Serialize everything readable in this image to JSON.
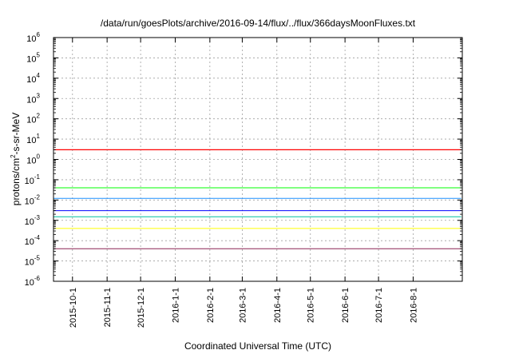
{
  "chart_data": {
    "type": "line",
    "title": "/data/run/goesPlots/archive/2016-09-14/flux/../flux/366daysMoonFluxes.txt",
    "xlabel": "Coordinated Universal Time (UTC)",
    "ylabel_parts": [
      "protons/cm",
      "2",
      "-s-sr-MeV"
    ],
    "y_scale": "log",
    "ylim": [
      1e-06,
      1000000.0
    ],
    "xlim": [
      "2015-09-14",
      "2016-09-14"
    ],
    "grid": true,
    "x_ticks": [
      {
        "date": "2015-10-01",
        "label": "2015-10-1"
      },
      {
        "date": "2015-11-01",
        "label": "2015-11-1"
      },
      {
        "date": "2015-12-01",
        "label": "2015-12-1"
      },
      {
        "date": "2016-01-01",
        "label": "2016-1-1"
      },
      {
        "date": "2016-02-01",
        "label": "2016-2-1"
      },
      {
        "date": "2016-03-01",
        "label": "2016-3-1"
      },
      {
        "date": "2016-04-01",
        "label": "2016-4-1"
      },
      {
        "date": "2016-05-01",
        "label": "2016-5-1"
      },
      {
        "date": "2016-06-01",
        "label": "2016-6-1"
      },
      {
        "date": "2016-07-01",
        "label": "2016-7-1"
      },
      {
        "date": "2016-08-01",
        "label": "2016-8-1"
      }
    ],
    "y_ticks": [
      {
        "exp": -6,
        "base": "10",
        "sup": "-6"
      },
      {
        "exp": -5,
        "base": "10",
        "sup": "-5"
      },
      {
        "exp": -4,
        "base": "10",
        "sup": "-4"
      },
      {
        "exp": -3,
        "base": "10",
        "sup": "-3"
      },
      {
        "exp": -2,
        "base": "10",
        "sup": "-2"
      },
      {
        "exp": -1,
        "base": "10",
        "sup": "-1"
      },
      {
        "exp": 0,
        "base": "10",
        "sup": "0"
      },
      {
        "exp": 1,
        "base": "10",
        "sup": "1"
      },
      {
        "exp": 2,
        "base": "10",
        "sup": "2"
      },
      {
        "exp": 3,
        "base": "10",
        "sup": "3"
      },
      {
        "exp": 4,
        "base": "10",
        "sup": "4"
      },
      {
        "exp": 5,
        "base": "10",
        "sup": "5"
      },
      {
        "exp": 6,
        "base": "10",
        "sup": "6"
      }
    ],
    "series": [
      {
        "color": "#8b2252",
        "width": 1.0,
        "x": [
          "2015-09-14",
          "2015-10-15",
          "2015-11-15",
          "2015-12-15",
          "2016-01-15",
          "2016-02-15",
          "2016-03-15",
          "2016-04-15",
          "2016-05-15",
          "2016-06-15",
          "2016-07-15",
          "2016-08-15",
          "2016-09-13"
        ],
        "y": [
          4e-05,
          4e-05,
          4e-05,
          4e-05,
          4e-05,
          4e-05,
          4e-05,
          4e-05,
          4e-05,
          4e-05,
          4e-05,
          4e-05,
          4e-05
        ]
      },
      {
        "color": "#ffff00",
        "width": 1.0,
        "x": [
          "2015-09-14",
          "2015-10-15",
          "2015-11-15",
          "2015-12-15",
          "2016-01-15",
          "2016-02-15",
          "2016-03-15",
          "2016-04-15",
          "2016-05-15",
          "2016-06-15",
          "2016-07-15",
          "2016-08-15",
          "2016-09-13"
        ],
        "y": [
          0.0004,
          0.0004,
          0.0004,
          0.0004,
          0.0004,
          0.0004,
          0.0004,
          0.0004,
          0.0004,
          0.0004,
          0.0004,
          0.0004,
          0.0004
        ]
      },
      {
        "color": "#00c0a0",
        "width": 1.0,
        "x": [
          "2015-09-14",
          "2015-10-15",
          "2015-11-15",
          "2015-12-15",
          "2016-01-15",
          "2016-02-15",
          "2016-03-15",
          "2016-04-15",
          "2016-05-15",
          "2016-06-15",
          "2016-07-15",
          "2016-08-15",
          "2016-09-13"
        ],
        "y": [
          0.0015,
          0.0015,
          0.0015,
          0.0015,
          0.0015,
          0.0015,
          0.0015,
          0.0015,
          0.0015,
          0.0015,
          0.0015,
          0.0015,
          0.0015
        ]
      },
      {
        "color": "#00ff00",
        "width": 1.0,
        "x": [
          "2015-09-14",
          "2015-10-15",
          "2015-11-15",
          "2015-12-15",
          "2016-01-15",
          "2016-02-15",
          "2016-03-15",
          "2016-04-15",
          "2016-05-15",
          "2016-06-15",
          "2016-07-15",
          "2016-08-15",
          "2016-09-13"
        ],
        "y": [
          0.04,
          0.04,
          0.04,
          0.04,
          0.04,
          0.04,
          0.04,
          0.04,
          0.04,
          0.04,
          0.04,
          0.04,
          0.04
        ]
      },
      {
        "color": "#1e90ff",
        "width": 1.0,
        "x": [
          "2015-09-14",
          "2015-10-15",
          "2015-11-15",
          "2015-12-15",
          "2016-01-15",
          "2016-02-15",
          "2016-03-15",
          "2016-04-15",
          "2016-05-15",
          "2016-06-15",
          "2016-07-15",
          "2016-08-15",
          "2016-09-13"
        ],
        "y": [
          0.012,
          0.012,
          0.012,
          0.012,
          0.012,
          0.012,
          0.012,
          0.012,
          0.012,
          0.012,
          0.012,
          0.012,
          0.012
        ]
      },
      {
        "color": "#0000ff",
        "width": 1.0,
        "x": [
          "2015-09-14",
          "2015-10-15",
          "2015-11-15",
          "2015-12-15",
          "2016-01-15",
          "2016-02-15",
          "2016-03-15",
          "2016-04-15",
          "2016-05-15",
          "2016-06-15",
          "2016-07-15",
          "2016-08-15",
          "2016-09-13"
        ],
        "y": [
          0.003,
          0.003,
          0.003,
          0.003,
          0.003,
          0.003,
          0.003,
          0.003,
          0.003,
          0.003,
          0.003,
          0.003,
          0.003
        ]
      },
      {
        "color": "#ff0000",
        "width": 1.2,
        "x": [
          "2015-09-14",
          "2015-10-15",
          "2015-11-15",
          "2015-12-15",
          "2016-01-15",
          "2016-02-15",
          "2016-03-15",
          "2016-04-15",
          "2016-05-15",
          "2016-06-15",
          "2016-07-15",
          "2016-08-15",
          "2016-09-13"
        ],
        "y": [
          3,
          3,
          3,
          3,
          3,
          3,
          3,
          3,
          3,
          3,
          3,
          3,
          3
        ]
      }
    ]
  }
}
